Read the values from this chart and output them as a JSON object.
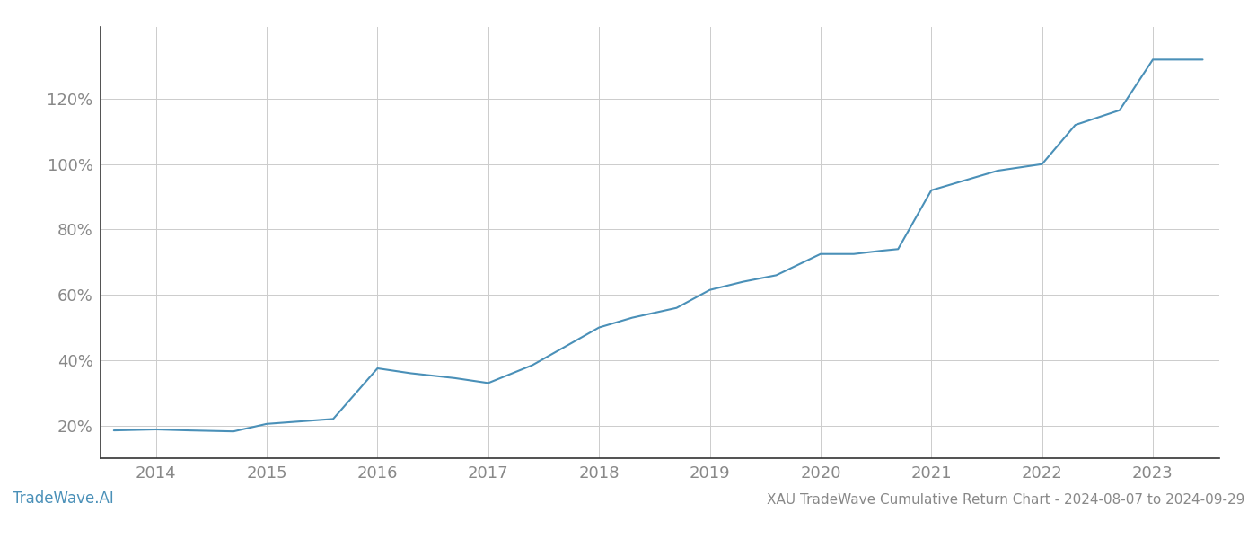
{
  "title": "XAU TradeWave Cumulative Return Chart - 2024-08-07 to 2024-09-29",
  "watermark": "TradeWave.AI",
  "line_color": "#4a90b8",
  "background_color": "#ffffff",
  "grid_color": "#cccccc",
  "x_values": [
    2013.62,
    2014.0,
    2014.3,
    2014.7,
    2015.0,
    2015.6,
    2016.0,
    2016.3,
    2016.7,
    2017.0,
    2017.4,
    2018.0,
    2018.3,
    2018.7,
    2019.0,
    2019.3,
    2019.6,
    2020.0,
    2020.3,
    2020.55,
    2020.7,
    2021.0,
    2021.3,
    2021.6,
    2022.0,
    2022.3,
    2022.7,
    2023.0,
    2023.45
  ],
  "y_values": [
    18.5,
    18.8,
    18.5,
    18.2,
    20.5,
    22.0,
    37.5,
    36.0,
    34.5,
    33.0,
    38.5,
    50.0,
    53.0,
    56.0,
    61.5,
    64.0,
    66.0,
    72.5,
    72.5,
    73.5,
    74.0,
    92.0,
    95.0,
    98.0,
    100.0,
    112.0,
    116.5,
    132.0,
    132.0
  ],
  "x_ticks": [
    2014,
    2015,
    2016,
    2017,
    2018,
    2019,
    2020,
    2021,
    2022,
    2023
  ],
  "y_ticks": [
    20,
    40,
    60,
    80,
    100,
    120
  ],
  "xlim": [
    2013.5,
    2023.6
  ],
  "ylim": [
    10,
    142
  ],
  "line_width": 1.5,
  "spine_color": "#333333",
  "tick_color": "#888888",
  "label_fontsize": 13,
  "title_fontsize": 11,
  "watermark_fontsize": 12,
  "watermark_color": "#4a90b8",
  "title_color": "#888888"
}
